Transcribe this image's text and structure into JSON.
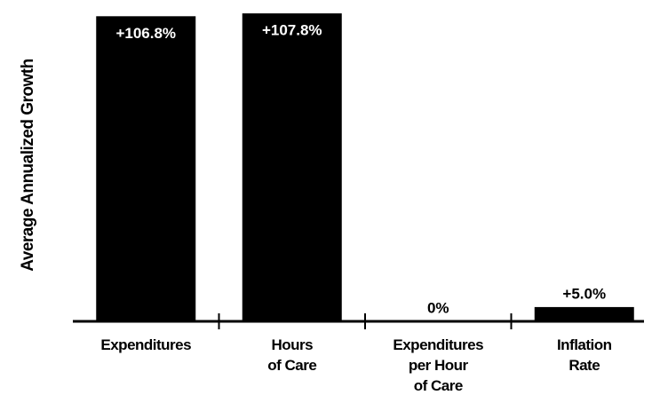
{
  "chart_data": {
    "type": "bar",
    "y_label": "Average Annualized Growth",
    "categories": [
      "Expenditures",
      "Hours\nof Care",
      "Expenditures\nper Hour\nof Care",
      "Inflation\nRate"
    ],
    "values": [
      106.8,
      107.8,
      0,
      5.0
    ],
    "value_labels": [
      "+106.8%",
      "+107.8%",
      "0%",
      "+5.0%"
    ],
    "color": "#000000",
    "ylim": [
      0,
      110
    ]
  }
}
